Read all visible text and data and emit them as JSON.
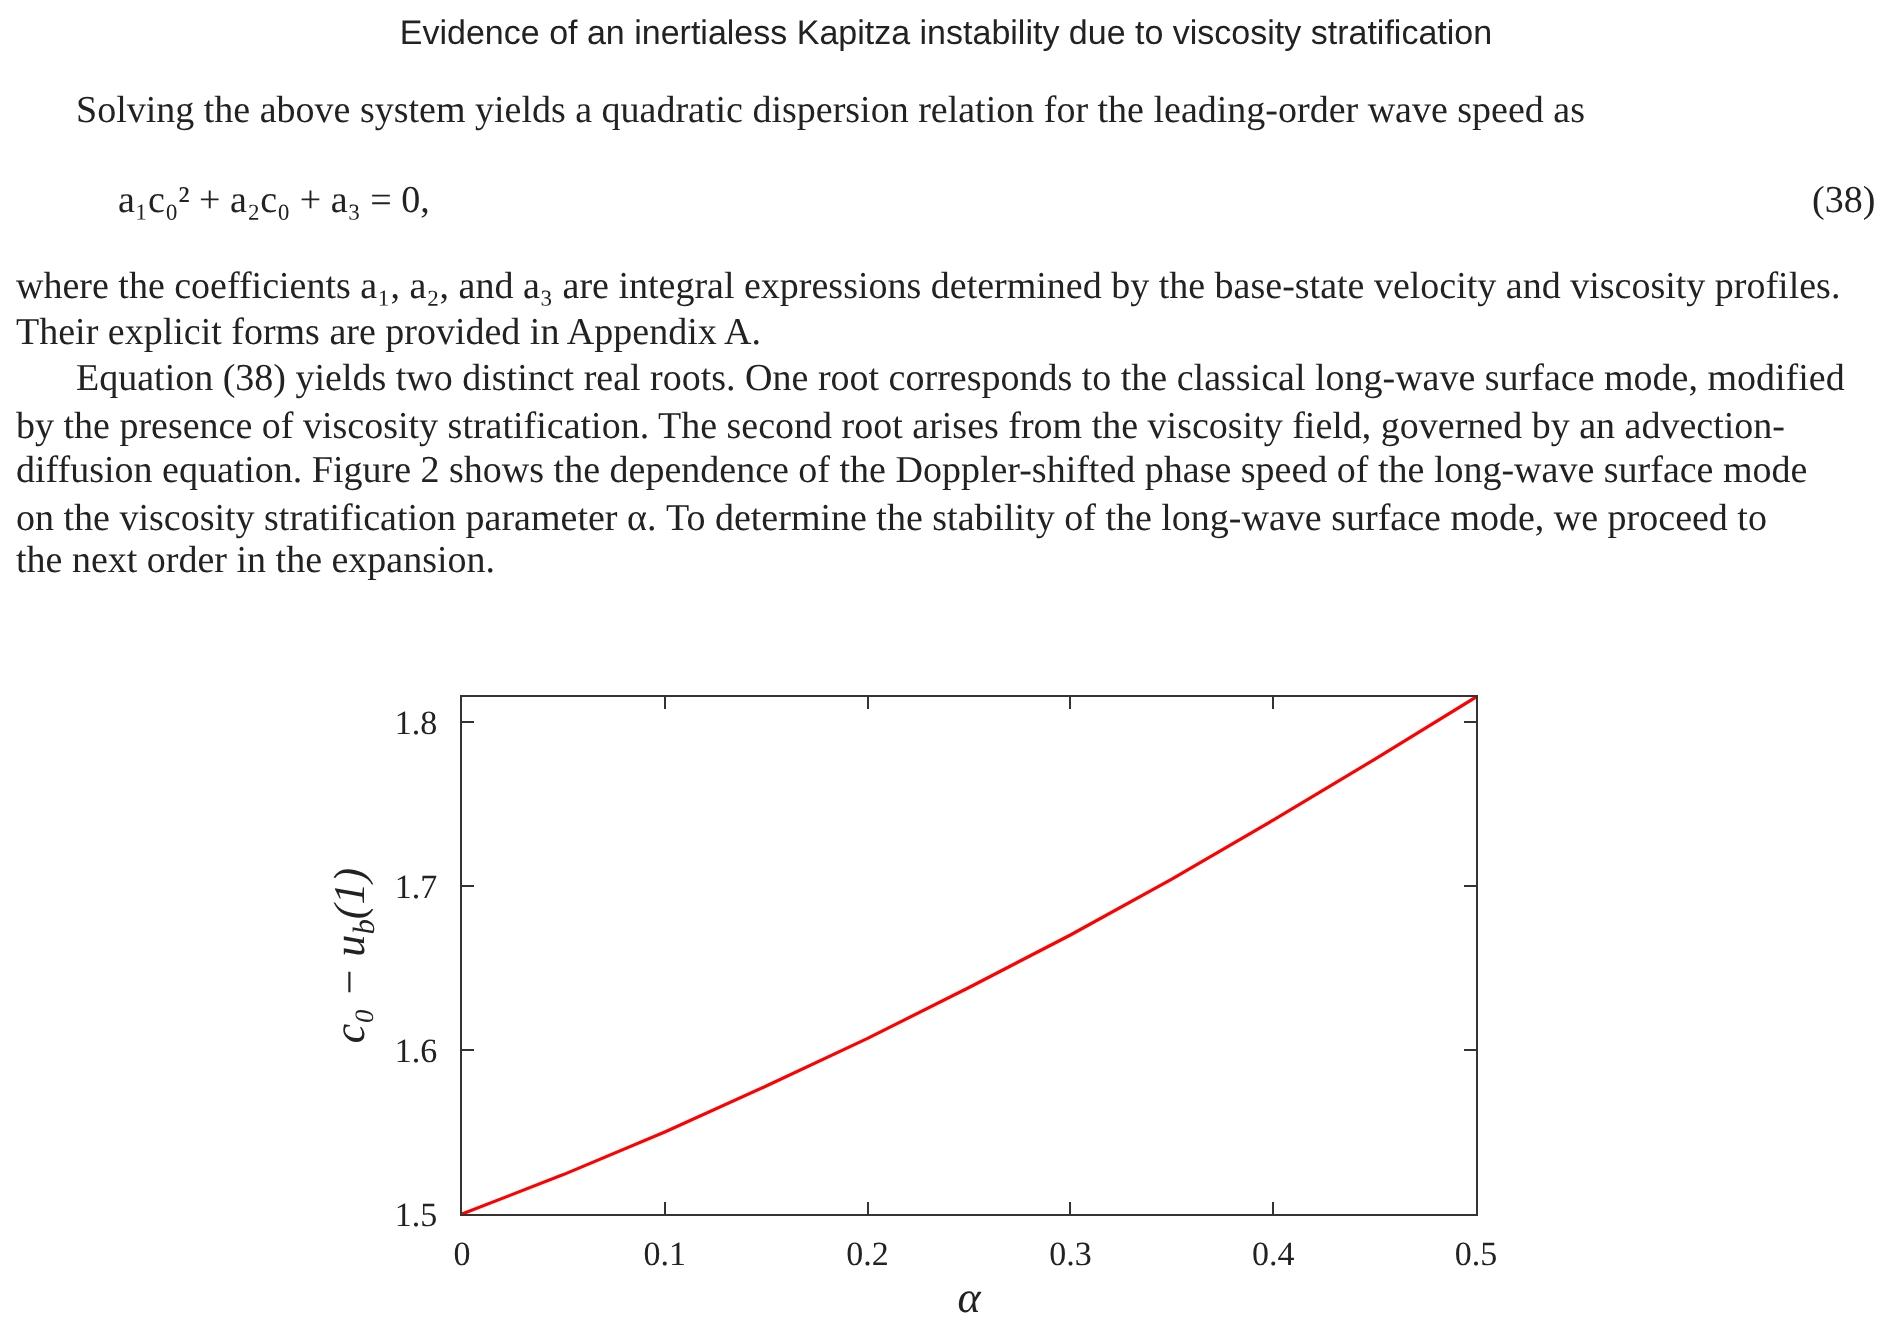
{
  "chart_data": {
    "type": "line",
    "title": "Evidence of an inertialess Kapitza instability due to viscosity stratification",
    "annotations": [
      "Solving the above system yields a quadratic dispersion relation for the leading-order wave speed as",
      "a₁c₀² + a₂c₀ + a₃ = 0,",
      "(38)",
      "where the coefficients a₁, a₂, and a₃ are integral expressions determined by the base-state velocity and viscosity profiles.",
      "Their explicit forms are provided in Appendix A.",
      "Equation (38) yields two distinct real roots. One root corresponds to the classical long-wave surface mode, modified",
      "by the presence of viscosity stratification. The second root arises from the viscosity field, governed by an advection-",
      "diffusion equation. Figure 2 shows the dependence of the Doppler-shifted phase speed of the long-wave surface mode",
      "on the viscosity stratification parameter α. To determine the stability of the long-wave surface mode, we proceed to",
      "the next order in the expansion."
    ],
    "xlabel": "α",
    "ylabel": "c₀ − u$_{b}$(1)",
    "x": [
      0,
      0.05,
      0.1,
      0.15,
      0.2,
      0.25,
      0.3,
      0.35,
      0.4,
      0.45,
      0.5
    ],
    "values": [
      1.5,
      1.524,
      1.55,
      1.578,
      1.607,
      1.638,
      1.67,
      1.704,
      1.74,
      1.777,
      1.815
    ],
    "color": "#ff0000",
    "xlim": [
      0,
      0.5
    ],
    "xticks": [
      0,
      0.1,
      0.2,
      0.3,
      0.4,
      0.5
    ],
    "ylim": [
      1.5,
      1.815
    ],
    "yticks": [
      1.5,
      1.6,
      1.7,
      1.8
    ]
  }
}
